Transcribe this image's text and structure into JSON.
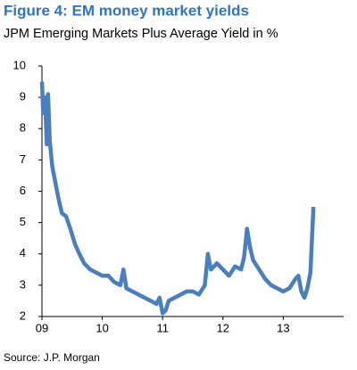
{
  "chart_data": {
    "type": "line",
    "title": "Figure 4: EM money market yields",
    "subtitle": "JPM Emerging Markets Plus Average Yield in %",
    "source": "Source: J.P. Morgan",
    "x": [
      2009.0,
      2009.02,
      2009.05,
      2009.08,
      2009.1,
      2009.13,
      2009.17,
      2009.22,
      2009.27,
      2009.33,
      2009.4,
      2009.47,
      2009.55,
      2009.62,
      2009.7,
      2009.8,
      2009.9,
      2010.0,
      2010.1,
      2010.2,
      2010.3,
      2010.35,
      2010.4,
      2010.5,
      2010.6,
      2010.7,
      2010.8,
      2010.9,
      2010.95,
      2011.0,
      2011.05,
      2011.1,
      2011.2,
      2011.3,
      2011.4,
      2011.5,
      2011.6,
      2011.7,
      2011.75,
      2011.8,
      2011.9,
      2012.0,
      2012.1,
      2012.2,
      2012.3,
      2012.35,
      2012.4,
      2012.45,
      2012.5,
      2012.6,
      2012.7,
      2012.8,
      2012.9,
      2013.0,
      2013.1,
      2013.2,
      2013.25,
      2013.3,
      2013.35,
      2013.4,
      2013.45,
      2013.5
    ],
    "series": [
      {
        "color": "#4a7fbf",
        "values": [
          9.5,
          8.5,
          9.0,
          7.5,
          9.1,
          7.6,
          6.8,
          6.3,
          5.8,
          5.3,
          5.2,
          4.8,
          4.3,
          4.0,
          3.7,
          3.5,
          3.4,
          3.3,
          3.3,
          3.1,
          3.0,
          3.5,
          2.9,
          2.8,
          2.7,
          2.6,
          2.5,
          2.4,
          2.6,
          2.1,
          2.2,
          2.5,
          2.6,
          2.7,
          2.8,
          2.8,
          2.7,
          3.0,
          4.0,
          3.5,
          3.7,
          3.5,
          3.3,
          3.6,
          3.5,
          3.9,
          4.8,
          4.2,
          3.8,
          3.5,
          3.2,
          3.0,
          2.9,
          2.8,
          2.9,
          3.2,
          3.3,
          2.8,
          2.6,
          2.9,
          3.4,
          5.5
        ]
      }
    ],
    "xlim": [
      2009,
      2014
    ],
    "xticks": [
      {
        "value": 2009,
        "label": "09"
      },
      {
        "value": 2010,
        "label": "10"
      },
      {
        "value": 2011,
        "label": "11"
      },
      {
        "value": 2012,
        "label": "12"
      },
      {
        "value": 2013,
        "label": "13"
      }
    ],
    "ylim": [
      2,
      10
    ],
    "yticks": [
      2,
      3,
      4,
      5,
      6,
      7,
      8,
      9,
      10
    ]
  }
}
